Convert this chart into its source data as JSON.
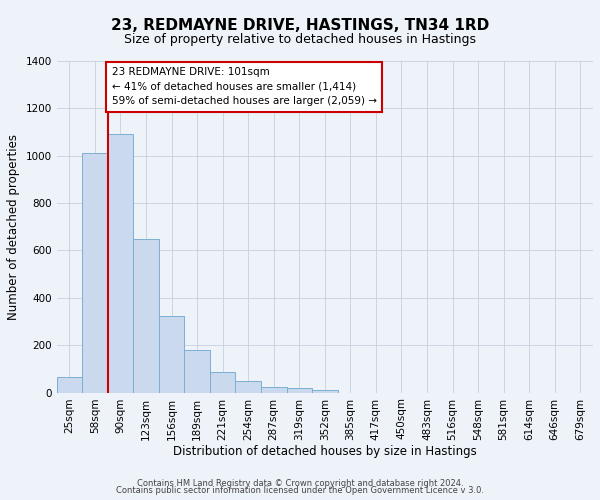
{
  "title": "23, REDMAYNE DRIVE, HASTINGS, TN34 1RD",
  "subtitle": "Size of property relative to detached houses in Hastings",
  "xlabel": "Distribution of detached houses by size in Hastings",
  "ylabel": "Number of detached properties",
  "bar_values": [
    65,
    1010,
    1090,
    650,
    325,
    178,
    88,
    48,
    25,
    20,
    12,
    0,
    0,
    0,
    0,
    0,
    0,
    0,
    0,
    0,
    0
  ],
  "categories": [
    "25sqm",
    "58sqm",
    "90sqm",
    "123sqm",
    "156sqm",
    "189sqm",
    "221sqm",
    "254sqm",
    "287sqm",
    "319sqm",
    "352sqm",
    "385sqm",
    "417sqm",
    "450sqm",
    "483sqm",
    "516sqm",
    "548sqm",
    "581sqm",
    "614sqm",
    "646sqm",
    "679sqm"
  ],
  "bar_color": "#cad9ed",
  "bar_edge_color": "#7bafd4",
  "vline_x": 2.0,
  "vline_color": "#cc0000",
  "annotation_text": "23 REDMAYNE DRIVE: 101sqm\n← 41% of detached houses are smaller (1,414)\n59% of semi-detached houses are larger (2,059) →",
  "annotation_box_color": "#ffffff",
  "annotation_box_edge": "#cc0000",
  "ylim": [
    0,
    1400
  ],
  "yticks": [
    0,
    200,
    400,
    600,
    800,
    1000,
    1200,
    1400
  ],
  "footer1": "Contains HM Land Registry data © Crown copyright and database right 2024.",
  "footer2": "Contains public sector information licensed under the Open Government Licence v 3.0.",
  "bg_color": "#eef2f9",
  "plot_bg_color": "#eef2f9",
  "title_fontsize": 11,
  "subtitle_fontsize": 9,
  "axis_label_fontsize": 8.5,
  "tick_fontsize": 7.5
}
